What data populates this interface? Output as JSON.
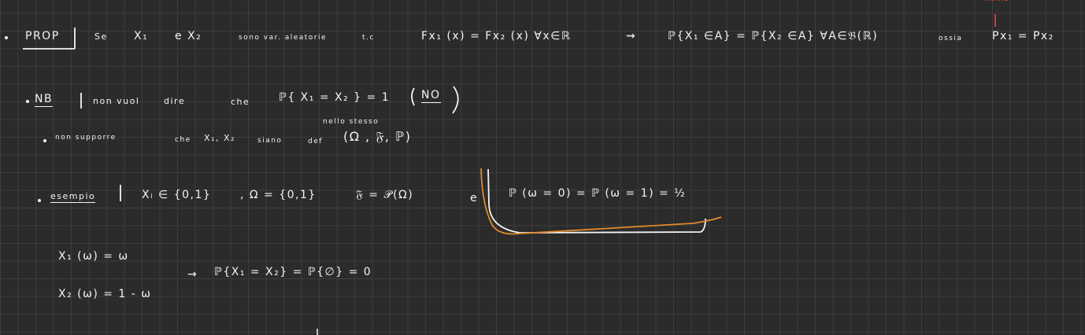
{
  "line1": {
    "prop_label": "PROP",
    "se": "Se",
    "x1": "X₁",
    "e_x2": "e X₂",
    "sono": "sono var. aleatorie",
    "tc": "t.c",
    "fx_eq": "Fx₁ (x) = Fx₂ (x)  ∀x∈ℝ",
    "arrow": "⇝",
    "prob_eq": "ℙ{X₁ ∈A} = ℙ{X₂ ∈A}  ∀A∈𝔅(ℝ)",
    "ossia": "ossia",
    "px_eq": "Px₁ = Px₂"
  },
  "line2": {
    "nb_label": "NB",
    "non_vuol": "non vuol",
    "dire": "dire",
    "che": "che",
    "prob_eq": "ℙ{ X₁ = X₂ } = 1",
    "no_label": "NO"
  },
  "line3": {
    "nello_stesso": "nello stesso",
    "non_supporre": "non supporre",
    "che": "che",
    "x1x2": "X₁, X₂",
    "siano": "siano",
    "def": "def",
    "space": "(Ω , 𝔉, ℙ)"
  },
  "line4": {
    "esempio_label": "esempio",
    "xi": "Xᵢ ∈ {0,1}",
    "omega": ", Ω = {0,1}",
    "sigma": "𝔉 = 𝒫(Ω)",
    "e": "e",
    "prob": "ℙ (ω = 0) = ℙ (ω = 1) = ½"
  },
  "line5": {
    "x1def": "X₁ (ω) = ω",
    "arrow": "→",
    "result": "ℙ{X₁ = X₂} = ℙ{∅} = 0",
    "x2def": "X₂ (ω) = 1 - ω"
  },
  "top_right_note": "nome",
  "colors": {
    "background": "#2b2b2b",
    "grid": "#3d3d3d",
    "ink": "#f4f4f4",
    "orange": "#e08a2c",
    "red": "#e0403a"
  }
}
